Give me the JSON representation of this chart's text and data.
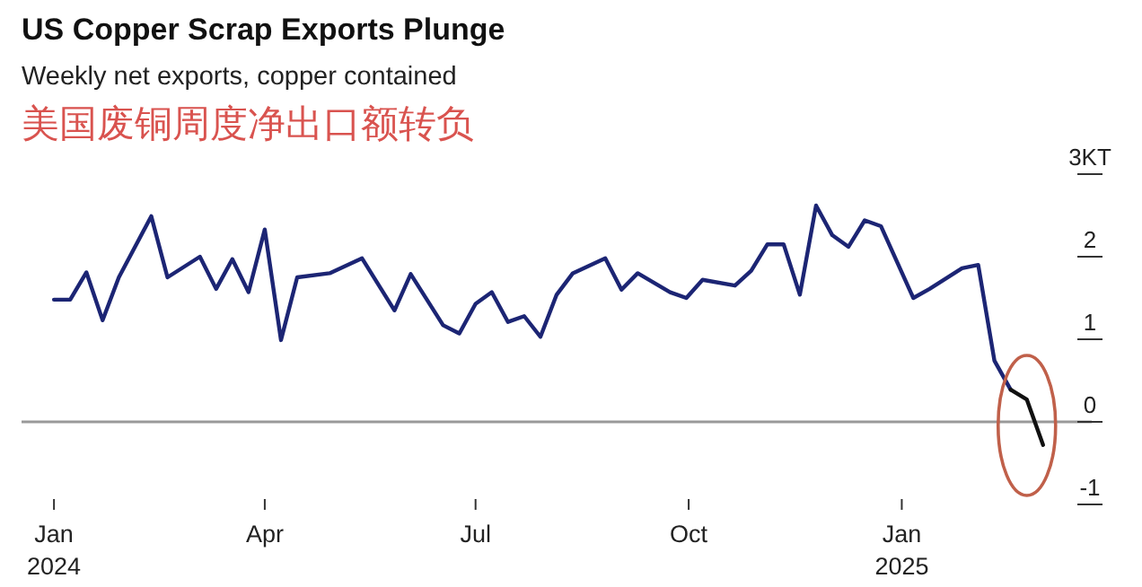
{
  "chart_data": {
    "type": "line",
    "title": "US Copper Scrap Exports Plunge",
    "subtitle": "Weekly net exports, copper contained",
    "annotations": [
      "美国废铜周度净出口额转负"
    ],
    "x": [
      "2024-01-01",
      "2024-01-08",
      "2024-01-15",
      "2024-01-22",
      "2024-01-29",
      "2024-02-12",
      "2024-02-19",
      "2024-03-04",
      "2024-03-11",
      "2024-03-18",
      "2024-03-25",
      "2024-04-01",
      "2024-04-08",
      "2024-04-15",
      "2024-04-29",
      "2024-05-13",
      "2024-05-27",
      "2024-06-03",
      "2024-06-17",
      "2024-06-24",
      "2024-07-01",
      "2024-07-08",
      "2024-07-15",
      "2024-07-22",
      "2024-07-29",
      "2024-08-05",
      "2024-08-12",
      "2024-08-26",
      "2024-09-02",
      "2024-09-09",
      "2024-09-23",
      "2024-09-30",
      "2024-10-07",
      "2024-10-21",
      "2024-10-28",
      "2024-11-04",
      "2024-11-11",
      "2024-11-18",
      "2024-11-25",
      "2024-12-02",
      "2024-12-09",
      "2024-12-16",
      "2024-12-23",
      "2025-01-06",
      "2025-01-13",
      "2025-01-27",
      "2025-02-03",
      "2025-02-10",
      "2025-02-17"
    ],
    "series": [
      {
        "color": "#1c2574",
        "values": [
          1.48,
          1.48,
          1.81,
          1.23,
          1.75,
          2.49,
          1.75,
          2.0,
          1.61,
          1.97,
          1.57,
          2.33,
          0.99,
          1.75,
          1.8,
          1.98,
          1.35,
          1.79,
          1.17,
          1.07,
          1.43,
          1.57,
          1.21,
          1.28,
          1.03,
          1.54,
          1.8,
          1.98,
          1.6,
          1.8,
          1.57,
          1.5,
          1.72,
          1.65,
          1.83,
          2.15,
          2.15,
          1.54,
          2.62,
          2.26,
          2.12,
          2.44,
          2.37,
          1.5,
          1.61,
          1.86,
          1.9,
          0.74,
          0.39
        ]
      },
      {
        "color": "#111111",
        "x": [
          "2025-02-17",
          "2025-02-24",
          "2025-03-03"
        ],
        "values": [
          0.39,
          0.27,
          -0.28
        ]
      }
    ],
    "xlim": [
      "2023-12-18",
      "2025-03-24"
    ],
    "xticks": [
      {
        "value": "2024-01-01",
        "label": "Jan 2024"
      },
      {
        "value": "2024-04-01",
        "label": "Apr"
      },
      {
        "value": "2024-07-01",
        "label": "Jul"
      },
      {
        "value": "2024-10-01",
        "label": "Oct"
      },
      {
        "value": "2025-01-01",
        "label": "Jan 2025"
      }
    ],
    "ylim": [
      -1,
      3
    ],
    "yticks": [
      -1,
      0,
      1,
      2,
      {
        "value": 3,
        "label": "3KT"
      }
    ],
    "ref_lines": [
      {
        "axis": "y",
        "value": 0,
        "color": "#999999"
      }
    ],
    "grid": false
  }
}
